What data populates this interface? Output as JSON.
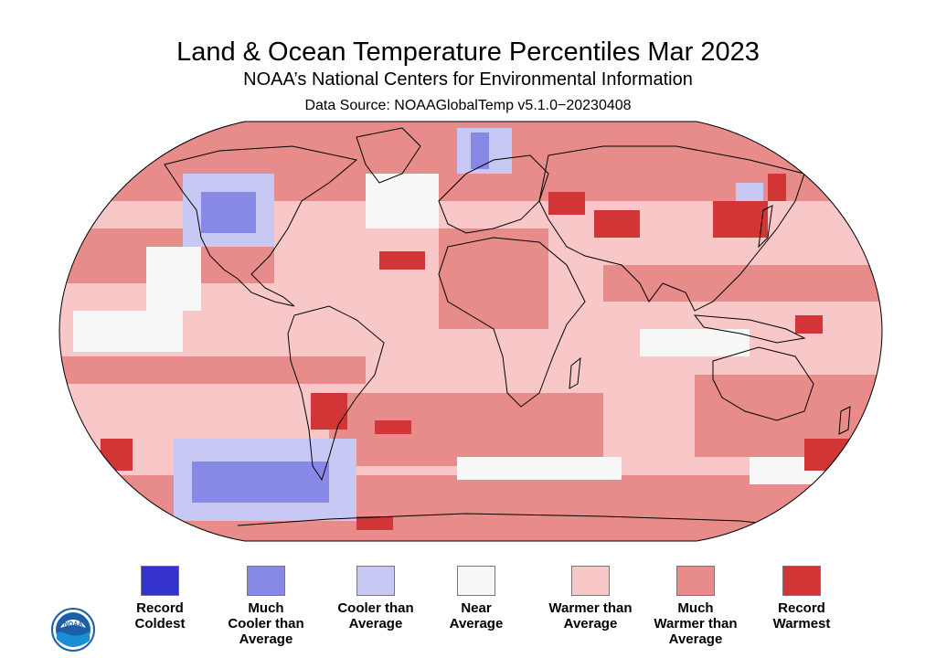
{
  "title": "Land & Ocean Temperature Percentiles Mar 2023",
  "subtitle": "NOAA’s National Centers for Environmental Information",
  "source": "Data Source: NOAAGlobalTemp v5.1.0−20230408",
  "colors": {
    "record_coldest": "#3333cc",
    "much_cooler": "#8888e6",
    "cooler": "#c8c8f5",
    "near": "#f7f7f7",
    "warmer": "#f8c8c8",
    "much_warmer": "#e78b8b",
    "record_warmest": "#d13535",
    "land_outline": "#000000"
  },
  "legend": [
    {
      "label": "Record\nColdest",
      "color": "#3333cc"
    },
    {
      "label": "Much\nCooler than\nAverage",
      "color": "#8888e6"
    },
    {
      "label": "Cooler than\nAverage",
      "color": "#c8c8f5"
    },
    {
      "label": "Near\nAverage",
      "color": "#f7f7f7"
    },
    {
      "label": "Warmer than\nAverage",
      "color": "#f8c8c8"
    },
    {
      "label": "Much\nWarmer than\nAverage",
      "color": "#e78b8b"
    },
    {
      "label": "Record\nWarmest",
      "color": "#d13535"
    }
  ],
  "logo": {
    "text": "NOAA",
    "icon": "noaa-logo-icon"
  }
}
